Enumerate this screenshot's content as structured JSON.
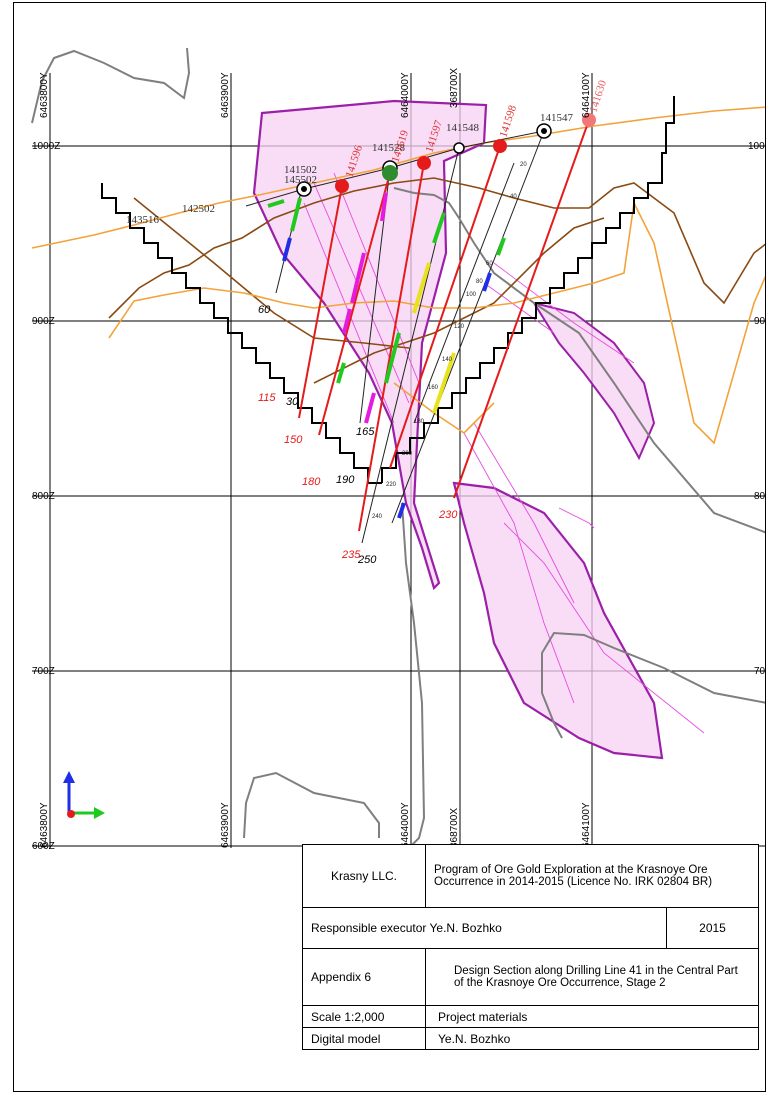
{
  "grid_labels": {
    "elevations": [
      "1000Z",
      "900Z",
      "800Z",
      "700Z",
      "600Z"
    ],
    "elevations_right": [
      "100",
      "90",
      "80",
      "70"
    ],
    "coordinates_top": [
      "6463800Y",
      "6463900Y",
      "6464000Y",
      "368700X",
      "6464100Y"
    ],
    "coordinates_bottom": [
      "6463800Y",
      "6463900Y",
      "6464000Y",
      "368700X",
      "6464100Y"
    ]
  },
  "drillholes": [
    {
      "id": "141547",
      "color": "#222222"
    },
    {
      "id": "141548",
      "color": "#222222"
    },
    {
      "id": "141528",
      "color": "#222222"
    },
    {
      "id": "141502",
      "color": "#222222"
    },
    {
      "id": "145502",
      "color": "#222222"
    },
    {
      "id": "143516",
      "color": "#222222"
    },
    {
      "id": "142502",
      "color": "#222222"
    },
    {
      "id": "141596",
      "color": "#e03030"
    },
    {
      "id": "141619",
      "color": "#e03030"
    },
    {
      "id": "141597",
      "color": "#e03030"
    },
    {
      "id": "141598",
      "color": "#e03030"
    },
    {
      "id": "141630",
      "color": "#e86060"
    }
  ],
  "depth_labels": {
    "red": [
      "115",
      "150",
      "180",
      "230",
      "230",
      "235"
    ],
    "black": [
      "60",
      "30",
      "190",
      "165",
      "250"
    ]
  },
  "depth_ticks": [
    "20",
    "40",
    "60",
    "80",
    "100",
    "120",
    "140",
    "160",
    "180",
    "200",
    "220",
    "240"
  ],
  "colors": {
    "orebody": "#9b1fa8",
    "orebody_fill": "#f7d2f3",
    "planned_hole": "#e51b1b",
    "topography": "#f4a23a",
    "pit_shell": "#000000",
    "contour_grey": "#7f7f7f",
    "contour_brown": "#8a4a12"
  },
  "axis_icon": "xyz-axis-icon",
  "title_block": {
    "company": "Krasny LLC.",
    "program": "Program of Ore Gold Exploration at the Krasnoye Ore Occurrence in 2014-2015 (Licence No. IRK 02804 BR)",
    "responsible": "Responsible executor Ye.N. Bozhko",
    "year": "2015",
    "appendix": "Appendix 6",
    "drawing_title": "Design Section along Drilling Line 41 in the Central Part of the Krasnoye Ore Occurrence, Stage 2",
    "scale": "Scale 1:2,000",
    "materials": "Project materials",
    "model_label": "Digital model",
    "author": "Ye.N. Bozhko"
  }
}
